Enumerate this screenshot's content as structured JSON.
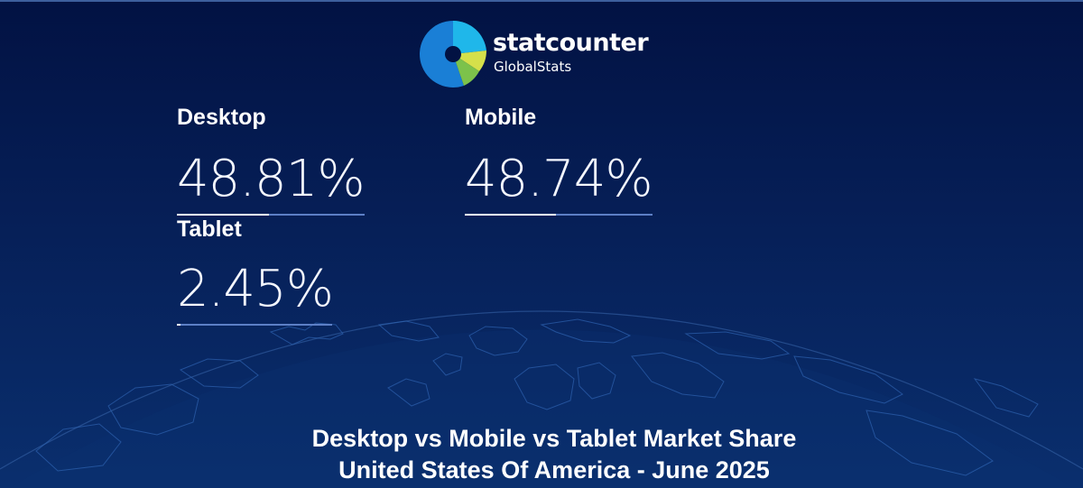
{
  "brand": {
    "name": "statcounter",
    "subtitle": "GlobalStats"
  },
  "stats": [
    {
      "label": "Desktop",
      "value": "48.81%",
      "share": 0.4881
    },
    {
      "label": "Mobile",
      "value": "48.74%",
      "share": 0.4874
    },
    {
      "label": "Tablet",
      "value": "2.45%",
      "share": 0.0245
    }
  ],
  "footer": {
    "line1": "Desktop vs Mobile vs Tablet Market Share",
    "line2": "United States Of America - June 2025"
  },
  "colors": {
    "background_top": "#021243",
    "background_bottom": "#0a2f6e",
    "bar_track": "#5c7fc6",
    "bar_fill": "#ffffff",
    "logo_blue": "#1a7fd6",
    "logo_cyan": "#1fb7ea",
    "logo_lime": "#d5e04a",
    "logo_green": "#7cc24b"
  }
}
